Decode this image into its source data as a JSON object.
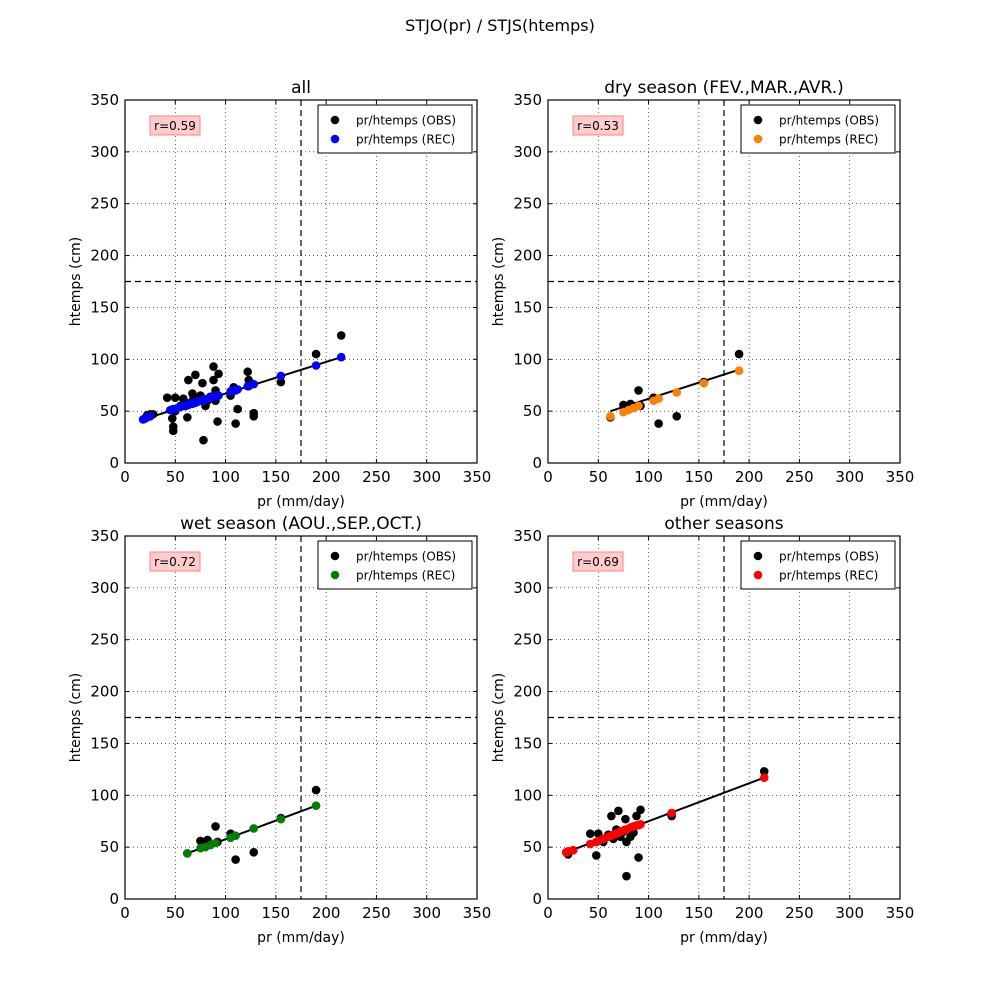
{
  "figure": {
    "title": "STJO(pr) / STJS(htemps)"
  },
  "chart_data": [
    {
      "type": "scatter",
      "title": "all",
      "xlabel": "pr (mm/day)",
      "ylabel": "htemps (cm)",
      "xlim": [
        0,
        350
      ],
      "ylim": [
        0,
        350
      ],
      "xticks": [
        "0",
        "50",
        "100",
        "150",
        "200",
        "250",
        "300",
        "350"
      ],
      "yticks": [
        "0",
        "50",
        "100",
        "150",
        "200",
        "250",
        "300",
        "350"
      ],
      "grid": true,
      "threshold_x": 175,
      "threshold_y": 175,
      "annotation": "r=0.59",
      "legend_position": "top-right",
      "rec_color": "#0000ff",
      "fit_line": [
        [
          18,
          42
        ],
        [
          215,
          102
        ]
      ],
      "series": [
        {
          "name": "pr/htemps (OBS)",
          "color": "#000000",
          "points": [
            [
              20,
              43
            ],
            [
              22,
              46
            ],
            [
              25,
              47
            ],
            [
              28,
              47
            ],
            [
              42,
              63
            ],
            [
              47,
              43
            ],
            [
              48,
              35
            ],
            [
              48,
              31
            ],
            [
              50,
              63
            ],
            [
              50,
              50
            ],
            [
              55,
              55
            ],
            [
              58,
              62
            ],
            [
              60,
              55
            ],
            [
              62,
              44
            ],
            [
              63,
              80
            ],
            [
              65,
              58
            ],
            [
              67,
              67
            ],
            [
              68,
              62
            ],
            [
              70,
              85
            ],
            [
              72,
              60
            ],
            [
              75,
              65
            ],
            [
              77,
              77
            ],
            [
              78,
              22
            ],
            [
              80,
              55
            ],
            [
              82,
              60
            ],
            [
              85,
              64
            ],
            [
              88,
              93
            ],
            [
              88,
              80
            ],
            [
              90,
              60
            ],
            [
              90,
              70
            ],
            [
              92,
              40
            ],
            [
              93,
              86
            ],
            [
              105,
              65
            ],
            [
              108,
              73
            ],
            [
              110,
              38
            ],
            [
              112,
              52
            ],
            [
              122,
              88
            ],
            [
              123,
              80
            ],
            [
              128,
              48
            ],
            [
              128,
              45
            ],
            [
              155,
              78
            ],
            [
              190,
              105
            ],
            [
              215,
              123
            ]
          ]
        },
        {
          "name": "pr/htemps (REC)",
          "color": "#0000ff",
          "points": [
            [
              18,
              42
            ],
            [
              20,
              43
            ],
            [
              22,
              44
            ],
            [
              25,
              45
            ],
            [
              45,
              51
            ],
            [
              48,
              52
            ],
            [
              50,
              52
            ],
            [
              55,
              54
            ],
            [
              58,
              55
            ],
            [
              60,
              55
            ],
            [
              62,
              56
            ],
            [
              63,
              56
            ],
            [
              65,
              57
            ],
            [
              67,
              57
            ],
            [
              68,
              58
            ],
            [
              70,
              58
            ],
            [
              72,
              59
            ],
            [
              75,
              60
            ],
            [
              77,
              60
            ],
            [
              78,
              61
            ],
            [
              80,
              61
            ],
            [
              82,
              62
            ],
            [
              85,
              63
            ],
            [
              88,
              64
            ],
            [
              90,
              64
            ],
            [
              92,
              65
            ],
            [
              93,
              65
            ],
            [
              105,
              69
            ],
            [
              108,
              70
            ],
            [
              110,
              70
            ],
            [
              112,
              71
            ],
            [
              122,
              74
            ],
            [
              123,
              74
            ],
            [
              128,
              76
            ],
            [
              155,
              84
            ],
            [
              190,
              94
            ],
            [
              215,
              102
            ]
          ]
        }
      ]
    },
    {
      "type": "scatter",
      "title": "dry season (FEV.,MAR.,AVR.)",
      "xlabel": "pr (mm/day)",
      "ylabel": "htemps (cm)",
      "xlim": [
        0,
        350
      ],
      "ylim": [
        0,
        350
      ],
      "xticks": [
        "0",
        "50",
        "100",
        "150",
        "200",
        "250",
        "300",
        "350"
      ],
      "yticks": [
        "0",
        "50",
        "100",
        "150",
        "200",
        "250",
        "300",
        "350"
      ],
      "grid": true,
      "threshold_x": 175,
      "threshold_y": 175,
      "annotation": "r=0.53",
      "legend_position": "top-right",
      "rec_color": "#ff8000",
      "fit_line": [
        [
          62,
          50
        ],
        [
          190,
          90
        ]
      ],
      "series": [
        {
          "name": "pr/htemps (OBS)",
          "color": "#000000",
          "points": [
            [
              62,
              44
            ],
            [
              75,
              56
            ],
            [
              80,
              55
            ],
            [
              82,
              57
            ],
            [
              90,
              70
            ],
            [
              92,
              55
            ],
            [
              105,
              63
            ],
            [
              110,
              38
            ],
            [
              128,
              45
            ],
            [
              155,
              78
            ],
            [
              190,
              105
            ]
          ]
        },
        {
          "name": "pr/htemps (REC)",
          "color": "#ff8000",
          "points": [
            [
              62,
              45
            ],
            [
              75,
              49
            ],
            [
              80,
              51
            ],
            [
              85,
              53
            ],
            [
              90,
              55
            ],
            [
              105,
              60
            ],
            [
              110,
              62
            ],
            [
              128,
              68
            ],
            [
              155,
              77
            ],
            [
              190,
              89
            ]
          ]
        }
      ]
    },
    {
      "type": "scatter",
      "title": "wet season (AOU.,SEP.,OCT.)",
      "xlabel": "pr (mm/day)",
      "ylabel": "htemps (cm)",
      "xlim": [
        0,
        350
      ],
      "ylim": [
        0,
        350
      ],
      "xticks": [
        "0",
        "50",
        "100",
        "150",
        "200",
        "250",
        "300",
        "350"
      ],
      "yticks": [
        "0",
        "50",
        "100",
        "150",
        "200",
        "250",
        "300",
        "350"
      ],
      "grid": true,
      "threshold_x": 175,
      "threshold_y": 175,
      "annotation": "r=0.72",
      "legend_position": "top-right",
      "rec_color": "#008000",
      "fit_line": [
        [
          62,
          44
        ],
        [
          190,
          90
        ]
      ],
      "series": [
        {
          "name": "pr/htemps (OBS)",
          "color": "#000000",
          "points": [
            [
              62,
              44
            ],
            [
              75,
              56
            ],
            [
              80,
              55
            ],
            [
              82,
              57
            ],
            [
              90,
              70
            ],
            [
              92,
              55
            ],
            [
              105,
              63
            ],
            [
              110,
              38
            ],
            [
              128,
              45
            ],
            [
              155,
              78
            ],
            [
              190,
              105
            ]
          ]
        },
        {
          "name": "pr/htemps (REC)",
          "color": "#008000",
          "points": [
            [
              62,
              44
            ],
            [
              75,
              49
            ],
            [
              80,
              50
            ],
            [
              85,
              52
            ],
            [
              90,
              54
            ],
            [
              105,
              59
            ],
            [
              110,
              61
            ],
            [
              128,
              68
            ],
            [
              155,
              77
            ],
            [
              190,
              90
            ]
          ]
        }
      ]
    },
    {
      "type": "scatter",
      "title": "other seasons",
      "xlabel": "pr (mm/day)",
      "ylabel": "htemps (cm)",
      "xlim": [
        0,
        350
      ],
      "ylim": [
        0,
        350
      ],
      "xticks": [
        "0",
        "50",
        "100",
        "150",
        "200",
        "250",
        "300",
        "350"
      ],
      "yticks": [
        "0",
        "50",
        "100",
        "150",
        "200",
        "250",
        "300",
        "350"
      ],
      "grid": true,
      "threshold_x": 175,
      "threshold_y": 175,
      "annotation": "r=0.69",
      "legend_position": "top-right",
      "rec_color": "#ff0000",
      "fit_line": [
        [
          18,
          45
        ],
        [
          215,
          117
        ]
      ],
      "series": [
        {
          "name": "pr/htemps (OBS)",
          "color": "#000000",
          "points": [
            [
              20,
              43
            ],
            [
              25,
              47
            ],
            [
              42,
              63
            ],
            [
              48,
              42
            ],
            [
              50,
              63
            ],
            [
              55,
              55
            ],
            [
              60,
              62
            ],
            [
              63,
              80
            ],
            [
              65,
              58
            ],
            [
              68,
              67
            ],
            [
              70,
              85
            ],
            [
              72,
              60
            ],
            [
              75,
              65
            ],
            [
              77,
              77
            ],
            [
              78,
              22
            ],
            [
              78,
              55
            ],
            [
              82,
              60
            ],
            [
              85,
              64
            ],
            [
              88,
              80
            ],
            [
              90,
              40
            ],
            [
              92,
              86
            ],
            [
              123,
              80
            ],
            [
              215,
              123
            ]
          ]
        },
        {
          "name": "pr/htemps (REC)",
          "color": "#ff0000",
          "points": [
            [
              18,
              45
            ],
            [
              20,
              46
            ],
            [
              25,
              47
            ],
            [
              42,
              53
            ],
            [
              48,
              55
            ],
            [
              50,
              56
            ],
            [
              55,
              58
            ],
            [
              60,
              60
            ],
            [
              63,
              61
            ],
            [
              65,
              62
            ],
            [
              68,
              63
            ],
            [
              70,
              64
            ],
            [
              72,
              65
            ],
            [
              75,
              66
            ],
            [
              77,
              67
            ],
            [
              78,
              67
            ],
            [
              82,
              69
            ],
            [
              85,
              70
            ],
            [
              88,
              71
            ],
            [
              90,
              71
            ],
            [
              92,
              72
            ],
            [
              123,
              83
            ],
            [
              215,
              117
            ]
          ]
        }
      ]
    }
  ]
}
